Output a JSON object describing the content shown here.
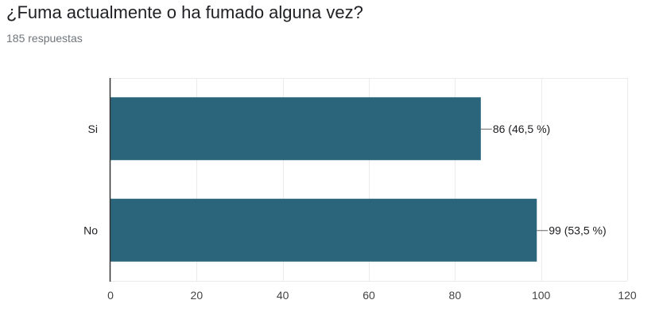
{
  "question": {
    "title": "¿Fuma actualmente o ha fumado alguna vez?",
    "response_count": "185 respuestas"
  },
  "colors": {
    "bar": "#2a657c",
    "grid": "#ebebeb",
    "axis": "#333333",
    "tick_text": "#444444",
    "label_text": "#202124"
  },
  "chart_data": {
    "type": "bar",
    "orientation": "horizontal",
    "categories": [
      "Si",
      "No"
    ],
    "values": [
      86,
      99
    ],
    "data_labels": [
      "86 (46,5 %)",
      "99 (53,5 %)"
    ],
    "xlim": [
      0,
      120
    ],
    "xticks": [
      0,
      20,
      40,
      60,
      80,
      100,
      120
    ],
    "grid": true,
    "xlabel": "",
    "ylabel": ""
  }
}
